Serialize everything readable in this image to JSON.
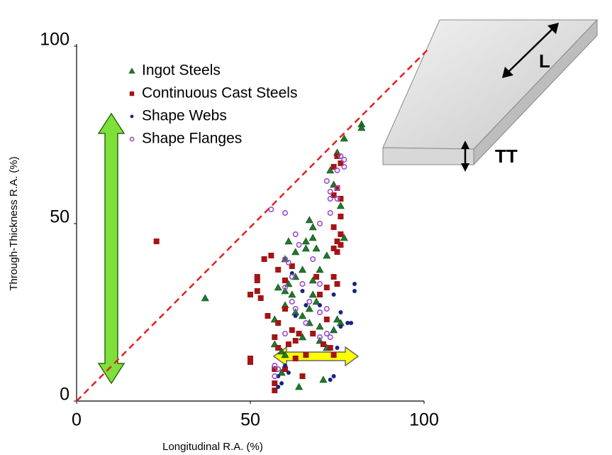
{
  "chart_data": {
    "type": "scatter",
    "x_label": "Longitudinal R.A. (%)",
    "y_label": "Through-Thickness R.A. (%)",
    "xlim": [
      0,
      100
    ],
    "ylim": [
      0,
      100
    ],
    "xticks": [
      0,
      50,
      100
    ],
    "yticks": [
      0,
      50,
      100
    ],
    "diagram_labels": [
      "L",
      "TT"
    ],
    "series": [
      {
        "name": "Ingot Steels",
        "color": "#1f7a2a",
        "marker": "triangle",
        "x": [
          82,
          82,
          77,
          75,
          73,
          74,
          76,
          77,
          67,
          68,
          68,
          66,
          61,
          63,
          66,
          69,
          72,
          60,
          65,
          63,
          61,
          68,
          70,
          58,
          62,
          60,
          68,
          69,
          67,
          63,
          65,
          60,
          57,
          67,
          70,
          74,
          75,
          70,
          72,
          57,
          59,
          60,
          65,
          59,
          71,
          64,
          76,
          37
        ],
        "values": [
          78,
          77,
          74,
          70,
          65,
          61,
          55,
          46,
          51,
          49,
          46,
          45,
          45,
          42,
          43,
          43,
          41,
          40,
          37,
          35,
          33,
          34,
          37,
          32,
          30,
          31,
          30,
          28,
          26,
          25,
          24,
          27,
          23,
          22,
          21,
          20,
          23,
          17,
          15,
          16,
          14,
          13,
          18,
          8,
          6,
          4,
          22,
          29
        ]
      },
      {
        "name": "Continuous Cast Steels",
        "color": "#a31515",
        "marker": "square",
        "x": [
          23,
          52,
          52,
          52,
          50,
          53,
          55,
          56,
          54,
          58,
          62,
          60,
          58,
          60,
          62,
          63,
          57,
          58,
          61,
          63,
          64,
          66,
          65,
          50,
          50,
          57,
          57,
          57,
          75,
          76,
          74,
          75,
          74,
          76,
          76,
          74,
          76,
          75,
          76,
          74,
          75,
          74,
          75,
          72,
          70,
          69,
          72,
          68,
          71,
          73,
          74,
          60
        ],
        "values": [
          45,
          35,
          34,
          31,
          30,
          29,
          24,
          41,
          40,
          37,
          38,
          34,
          22,
          26,
          20,
          17,
          18,
          15,
          16,
          12,
          19,
          13,
          7,
          12,
          11,
          9,
          3,
          5,
          69,
          67,
          66,
          60,
          58,
          57,
          52,
          49,
          47,
          45,
          44,
          43,
          42,
          35,
          33,
          32,
          30,
          35,
          23,
          19,
          16,
          15,
          13,
          9
        ]
      },
      {
        "name": "Shape Webs",
        "color": "#1a237e",
        "marker": "dot",
        "x": [
          80,
          80,
          76,
          78,
          79,
          76,
          75,
          74,
          73,
          61,
          59,
          58,
          58,
          60,
          63,
          66,
          70,
          65,
          74,
          62
        ],
        "values": [
          33,
          31,
          25,
          22,
          22,
          21,
          15,
          7,
          6,
          8,
          5,
          4,
          7,
          10,
          24,
          27,
          27,
          31,
          30,
          36
        ]
      },
      {
        "name": "Shape Flanges",
        "color": "#9c4dcc",
        "marker": "open-circle",
        "x": [
          76,
          77,
          77,
          75,
          72,
          75,
          73,
          73,
          75,
          56,
          60,
          70,
          73,
          63,
          64,
          60,
          61,
          68,
          62,
          65,
          70,
          60,
          62,
          63,
          67,
          70,
          72,
          66,
          60,
          70,
          72,
          73,
          57,
          58,
          57
        ],
        "values": [
          69,
          68,
          66,
          65,
          62,
          60,
          59,
          57,
          57,
          54,
          53,
          50,
          53,
          47,
          44,
          40,
          39,
          40,
          35,
          33,
          33,
          32,
          28,
          26,
          28,
          25,
          26,
          22,
          19,
          18,
          19,
          18,
          10,
          9,
          7
        ]
      }
    ]
  }
}
